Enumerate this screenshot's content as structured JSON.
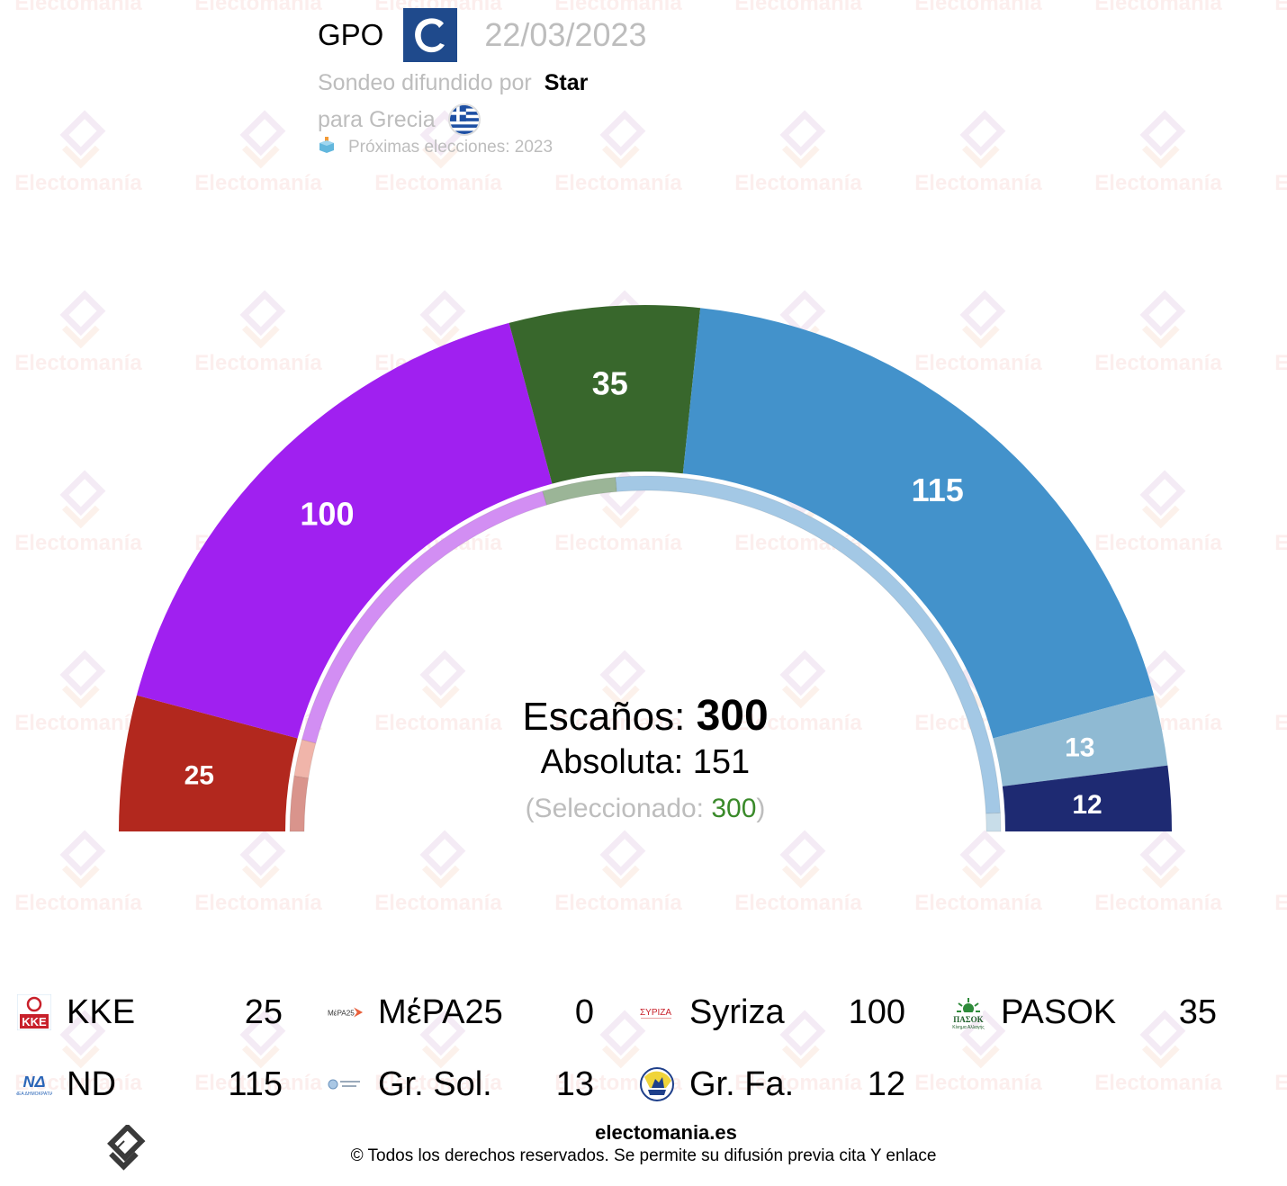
{
  "header": {
    "pollster": "GPO",
    "pollster_logo": "gpo-c-logo",
    "date": "22/03/2023",
    "published_by_label": "Sondeo difundido por",
    "media": "Star",
    "country_label": "para Grecia",
    "country_flag": "greece-flag-icon",
    "next_elections": "Próximas elecciones: 2023"
  },
  "center": {
    "seats_label": "Escaños:",
    "seats_total": "300",
    "majority_label": "Absoluta: 151",
    "selected_prefix": "(Seleccionado: ",
    "selected_value": "300",
    "selected_suffix": ")"
  },
  "legend": [
    {
      "name": "KKE",
      "seats": "25",
      "color": "#b2281e"
    },
    {
      "name": "MέPA25",
      "seats": "0",
      "color": "#e8603c"
    },
    {
      "name": "Syriza",
      "seats": "100",
      "color": "#a020f0"
    },
    {
      "name": "PASOK",
      "seats": "35",
      "color": "#38672c"
    },
    {
      "name": "ND",
      "seats": "115",
      "color": "#4392cb"
    },
    {
      "name": "Gr. Sol.",
      "seats": "13",
      "color": "#8fbad3"
    },
    {
      "name": "Gr. Fa.",
      "seats": "12",
      "color": "#1e2a72"
    }
  ],
  "footer": {
    "site": "electomania.es",
    "copyright": "© Todos los derechos reservados. Se permite su difusión previa cita Y enlace"
  },
  "watermark": "Electomanía",
  "chart_data": {
    "type": "pie",
    "subtype": "parliament-hemicycle",
    "title": "GPO 22/03/2023 — Grecia",
    "total_seats": 300,
    "majority": 151,
    "categories": [
      "KKE",
      "Syriza",
      "PASOK",
      "ND",
      "Gr. Sol.",
      "Gr. Fa.",
      "MέPA25"
    ],
    "values": [
      25,
      100,
      35,
      115,
      13,
      12,
      0
    ],
    "colors": [
      "#b2281e",
      "#a020f0",
      "#38672c",
      "#4392cb",
      "#8fbad3",
      "#1e2a72",
      "#e8603c"
    ],
    "inner_ring": {
      "description": "comparison ring (previous results), approximate seat-equivalent shares",
      "segments": [
        {
          "name": "KKE",
          "value": 15,
          "color": "#d9948c"
        },
        {
          "name": "MέPA25",
          "value": 10,
          "color": "#f0b5aa"
        },
        {
          "name": "Syriza",
          "value": 97,
          "color": "#d28ef3"
        },
        {
          "name": "PASOK",
          "value": 20,
          "color": "#9bb597"
        },
        {
          "name": "ND",
          "value": 153,
          "color": "#a3c8e5"
        },
        {
          "name": "Others",
          "value": 5,
          "color": "#c8dde9"
        }
      ]
    }
  }
}
